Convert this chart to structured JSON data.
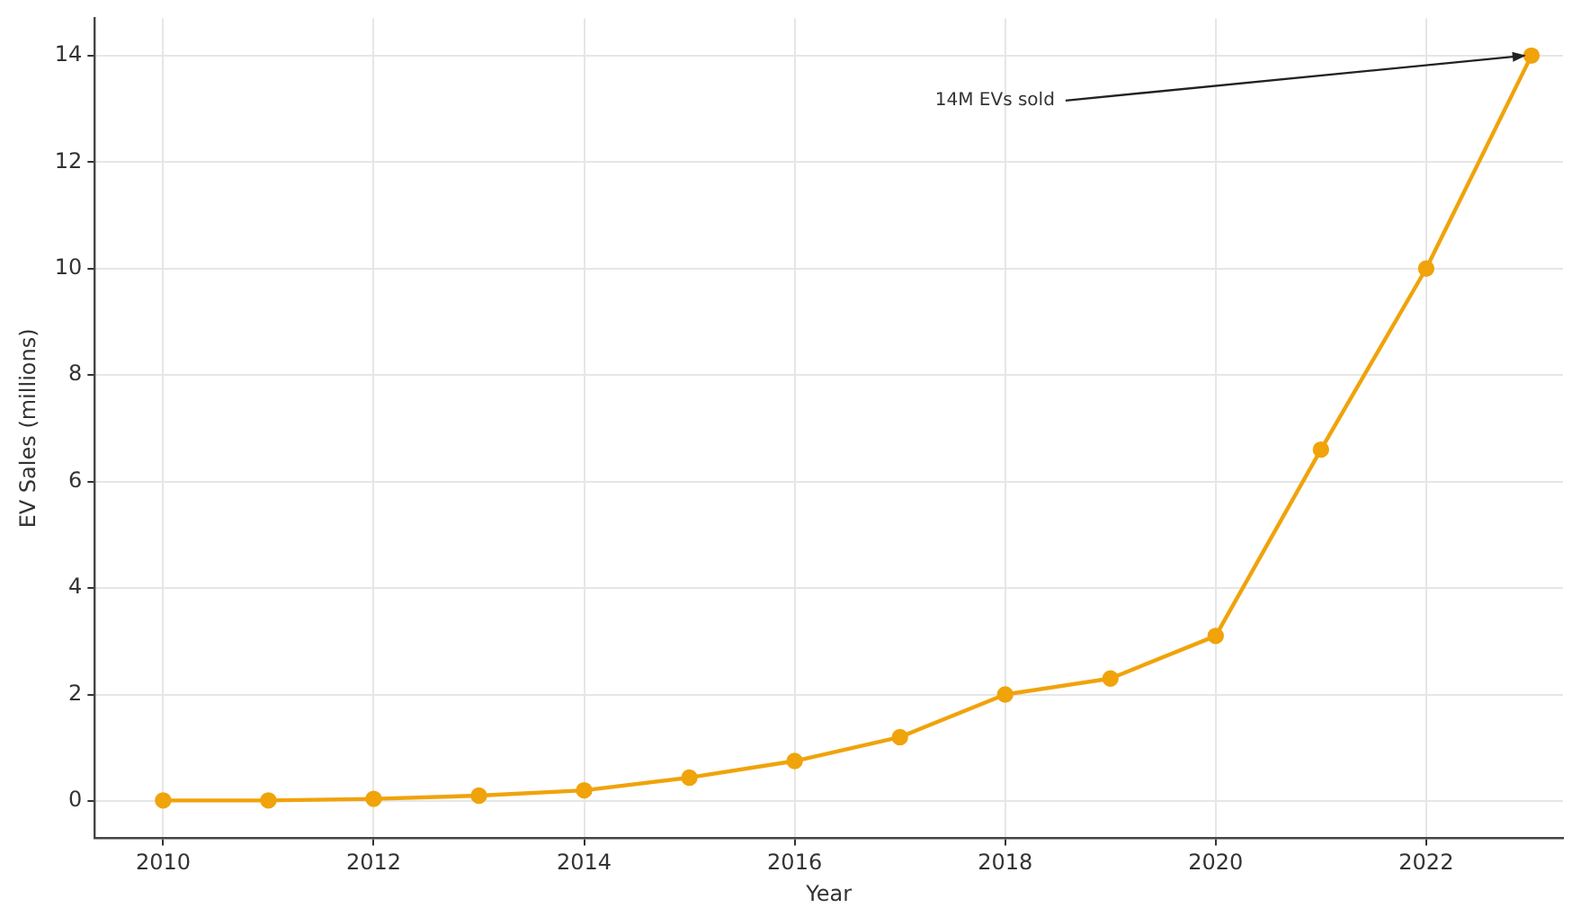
{
  "chart_data": {
    "type": "line",
    "xlabel": "Year",
    "ylabel": "EV Sales (millions)",
    "x": [
      2010,
      2011,
      2012,
      2013,
      2014,
      2015,
      2016,
      2017,
      2018,
      2019,
      2020,
      2021,
      2022,
      2023
    ],
    "series": [
      {
        "color": "#f0a30a",
        "values": [
          0.01,
          0.01,
          0.04,
          0.1,
          0.2,
          0.44,
          0.75,
          1.2,
          2.0,
          2.3,
          3.1,
          6.6,
          10.0,
          14.0
        ]
      }
    ],
    "xlim": [
      2009.35,
      2023.3
    ],
    "xticks": [
      2010,
      2012,
      2014,
      2016,
      2018,
      2020,
      2022
    ],
    "ylim": [
      -0.7,
      14.7
    ],
    "yticks": [
      0,
      2,
      4,
      6,
      8,
      10,
      12,
      14
    ],
    "grid": true,
    "legend": false,
    "marker": "circle",
    "line_style": "solid",
    "annotations": [
      {
        "text": "14M EVs sold",
        "x": 2023,
        "y": 14
      }
    ]
  }
}
